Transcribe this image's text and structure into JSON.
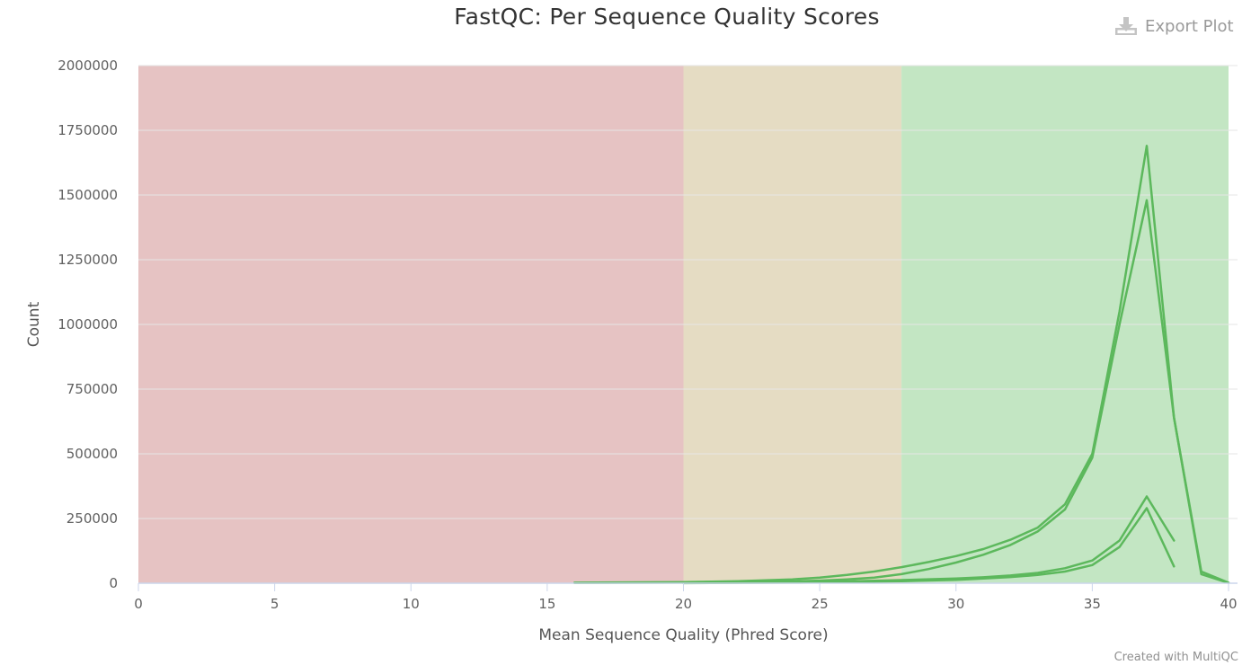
{
  "header": {
    "export_label": "Export Plot",
    "export_icon": "download-icon"
  },
  "footer": {
    "credit": "Created with MultiQC"
  },
  "chart_data": {
    "type": "line",
    "title": "FastQC: Per Sequence Quality Scores",
    "xlabel": "Mean Sequence Quality (Phred Score)",
    "ylabel": "Count",
    "xlim": [
      0,
      40
    ],
    "ylim": [
      0,
      2000000
    ],
    "x_ticks": [
      "0",
      "5",
      "10",
      "15",
      "20",
      "25",
      "30",
      "35",
      "40"
    ],
    "y_ticks": [
      "0",
      "250000",
      "500000",
      "750000",
      "1000000",
      "1250000",
      "1500000",
      "1750000",
      "2000000"
    ],
    "grid": true,
    "bands": [
      {
        "from": 0,
        "to": 20,
        "color": "#e6c3c3"
      },
      {
        "from": 20,
        "to": 28,
        "color": "#e5dcc3"
      },
      {
        "from": 28,
        "to": 40,
        "color": "#c3e6c3"
      }
    ],
    "line_color": "#5cb85c",
    "series": [
      {
        "x": [
          16,
          20,
          22,
          24,
          25,
          26,
          27,
          28,
          29,
          30,
          31,
          32,
          33,
          34,
          35,
          36,
          37,
          38,
          39,
          40
        ],
        "values": [
          2000,
          4000,
          8000,
          15000,
          22000,
          32000,
          45000,
          62000,
          82000,
          105000,
          132000,
          168000,
          215000,
          305000,
          500000,
          1050000,
          1690000,
          640000,
          45000,
          2000
        ]
      },
      {
        "x": [
          16,
          20,
          22,
          24,
          25,
          26,
          27,
          28,
          29,
          30,
          31,
          32,
          33,
          34,
          35,
          36,
          37,
          38,
          39,
          40
        ],
        "values": [
          1000,
          2000,
          4000,
          7000,
          10000,
          15000,
          22000,
          35000,
          55000,
          80000,
          110000,
          148000,
          200000,
          285000,
          485000,
          1000000,
          1480000,
          640000,
          35000,
          1000
        ]
      },
      {
        "x": [
          20,
          24,
          26,
          28,
          30,
          31,
          32,
          33,
          34,
          35,
          36,
          37,
          38
        ],
        "values": [
          1000,
          4000,
          7000,
          12000,
          18000,
          23000,
          30000,
          40000,
          58000,
          88000,
          165000,
          335000,
          165000
        ]
      },
      {
        "x": [
          20,
          24,
          26,
          28,
          30,
          31,
          32,
          33,
          34,
          35,
          36,
          37,
          38
        ],
        "values": [
          500,
          2000,
          4000,
          8000,
          13000,
          18000,
          24000,
          32000,
          45000,
          70000,
          140000,
          290000,
          65000
        ]
      }
    ]
  }
}
